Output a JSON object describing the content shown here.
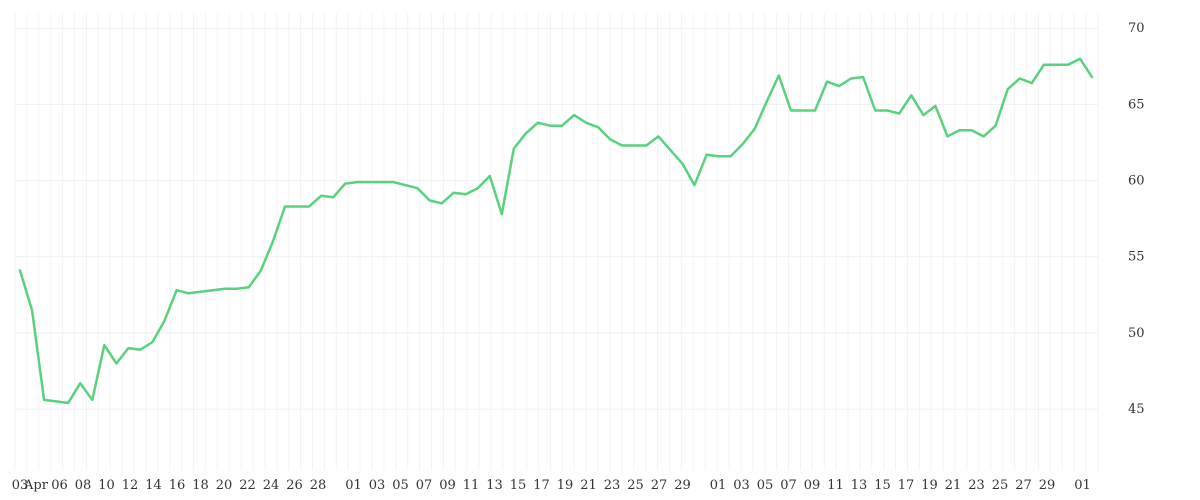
{
  "chart_data": {
    "type": "line",
    "title": "",
    "xlabel": "",
    "ylabel": "",
    "ylim": [
      41,
      71
    ],
    "y_ticks": [
      45,
      50,
      55,
      60,
      65,
      70
    ],
    "grid": true,
    "line_color": "#5ad17f",
    "x_tick_labels": [
      "03",
      "Apr",
      "06",
      "08",
      "10",
      "12",
      "14",
      "16",
      "18",
      "20",
      "22",
      "24",
      "26",
      "28",
      "01",
      "03",
      "05",
      "07",
      "09",
      "11",
      "13",
      "15",
      "17",
      "19",
      "21",
      "23",
      "25",
      "27",
      "29",
      "01",
      "03",
      "05",
      "07",
      "09",
      "11",
      "13",
      "15",
      "17",
      "19",
      "21",
      "23",
      "25",
      "27",
      "29",
      "01"
    ],
    "series": [
      {
        "values": [
          54.1,
          51.5,
          45.6,
          45.5,
          45.4,
          46.7,
          45.6,
          49.2,
          48.0,
          49.0,
          48.9,
          49.4,
          50.8,
          52.8,
          52.6,
          52.7,
          52.8,
          52.9,
          52.9,
          53.0,
          54.1,
          56.0,
          58.3,
          58.3,
          58.3,
          59.0,
          58.9,
          59.8,
          59.9,
          59.9,
          59.9,
          59.9,
          59.7,
          59.5,
          58.7,
          58.5,
          59.2,
          59.1,
          59.5,
          60.3,
          57.8,
          62.1,
          63.1,
          63.8,
          63.6,
          63.6,
          64.3,
          63.8,
          63.5,
          62.7,
          62.3,
          62.3,
          62.3,
          62.9,
          62.0,
          61.1,
          59.7,
          61.7,
          61.6,
          61.6,
          62.4,
          63.4,
          65.2,
          66.9,
          64.6,
          64.6,
          64.6,
          66.5,
          66.2,
          66.7,
          66.8,
          64.6,
          64.6,
          64.4,
          65.6,
          64.3,
          64.9,
          62.9,
          63.3,
          63.3,
          62.9,
          63.6,
          66.0,
          66.7,
          66.4,
          67.6,
          67.6,
          67.6,
          68.0,
          66.8
        ]
      }
    ]
  }
}
